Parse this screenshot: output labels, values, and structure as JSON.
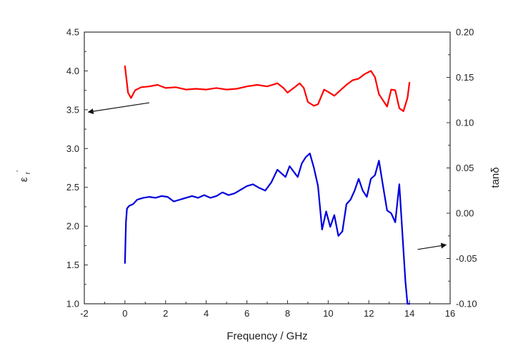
{
  "chart_data": {
    "type": "line",
    "title": "",
    "xlabel": "Frequency / GHz",
    "ylabel_left": "ε",
    "ylabel_left_sub": "r",
    "ylabel_left_sup": "'",
    "ylabel_right": "tanδ",
    "xlim": [
      -2,
      16
    ],
    "ylim_left": [
      1.0,
      4.5
    ],
    "ylim_right": [
      -0.1,
      0.2
    ],
    "x_ticks": [
      "-2",
      "0",
      "2",
      "4",
      "6",
      "8",
      "10",
      "12",
      "14",
      "16"
    ],
    "y_left_ticks": [
      "1.0",
      "1.5",
      "2.0",
      "2.5",
      "3.0",
      "3.5",
      "4.0",
      "4.5"
    ],
    "y_right_ticks": [
      "-0.10",
      "-0.05",
      "0.00",
      "0.05",
      "0.10",
      "0.15",
      "0.20"
    ],
    "grid": false,
    "series": [
      {
        "axis": "left",
        "color": "#ff0000",
        "x": [
          0.0,
          0.15,
          0.3,
          0.5,
          0.8,
          1.2,
          1.6,
          2.0,
          2.5,
          3.0,
          3.5,
          4.0,
          4.5,
          5.0,
          5.5,
          6.0,
          6.5,
          7.0,
          7.5,
          7.8,
          8.0,
          8.3,
          8.6,
          8.8,
          9.0,
          9.3,
          9.5,
          9.8,
          10.0,
          10.3,
          10.6,
          10.9,
          11.2,
          11.5,
          11.8,
          12.1,
          12.3,
          12.5,
          12.7,
          12.9,
          13.1,
          13.3,
          13.5,
          13.7,
          13.9,
          14.0
        ],
        "y": [
          4.06,
          3.72,
          3.65,
          3.75,
          3.79,
          3.8,
          3.82,
          3.78,
          3.79,
          3.76,
          3.77,
          3.76,
          3.78,
          3.76,
          3.77,
          3.8,
          3.82,
          3.8,
          3.84,
          3.78,
          3.72,
          3.78,
          3.84,
          3.78,
          3.6,
          3.55,
          3.57,
          3.76,
          3.73,
          3.68,
          3.75,
          3.82,
          3.88,
          3.9,
          3.96,
          4.0,
          3.92,
          3.7,
          3.62,
          3.54,
          3.76,
          3.75,
          3.52,
          3.48,
          3.65,
          3.85
        ]
      },
      {
        "axis": "right",
        "color": "#0000dd",
        "x": [
          0.0,
          0.05,
          0.1,
          0.2,
          0.4,
          0.6,
          0.9,
          1.2,
          1.5,
          1.8,
          2.1,
          2.4,
          2.7,
          3.0,
          3.3,
          3.6,
          3.9,
          4.2,
          4.5,
          4.8,
          5.1,
          5.4,
          5.7,
          6.0,
          6.3,
          6.6,
          6.9,
          7.2,
          7.5,
          7.7,
          7.9,
          8.1,
          8.3,
          8.5,
          8.7,
          8.9,
          9.1,
          9.3,
          9.5,
          9.7,
          9.9,
          10.1,
          10.3,
          10.5,
          10.7,
          10.9,
          11.1,
          11.3,
          11.5,
          11.7,
          11.9,
          12.1,
          12.3,
          12.5,
          12.7,
          12.9,
          13.1,
          13.3,
          13.5,
          13.7,
          13.8,
          13.9,
          14.0
        ],
        "y": [
          -0.055,
          -0.01,
          0.005,
          0.008,
          0.01,
          0.015,
          0.017,
          0.018,
          0.017,
          0.019,
          0.018,
          0.013,
          0.015,
          0.017,
          0.019,
          0.017,
          0.02,
          0.017,
          0.019,
          0.023,
          0.02,
          0.022,
          0.026,
          0.03,
          0.032,
          0.028,
          0.025,
          0.034,
          0.048,
          0.044,
          0.04,
          0.052,
          0.046,
          0.04,
          0.055,
          0.062,
          0.066,
          0.05,
          0.03,
          -0.018,
          0.002,
          -0.015,
          -0.002,
          -0.025,
          -0.02,
          0.01,
          0.015,
          0.025,
          0.038,
          0.025,
          0.018,
          0.038,
          0.042,
          0.058,
          0.03,
          0.003,
          0.0,
          -0.01,
          0.032,
          -0.04,
          -0.075,
          -0.11,
          -0.11
        ]
      }
    ],
    "annotations": [
      {
        "type": "arrow",
        "from": [
          1.2,
          3.59
        ],
        "to": [
          -1.8,
          3.47
        ],
        "axis": "left"
      },
      {
        "type": "arrow",
        "from": [
          14.4,
          -0.04
        ],
        "to": [
          15.8,
          -0.035
        ],
        "axis": "right"
      }
    ]
  }
}
